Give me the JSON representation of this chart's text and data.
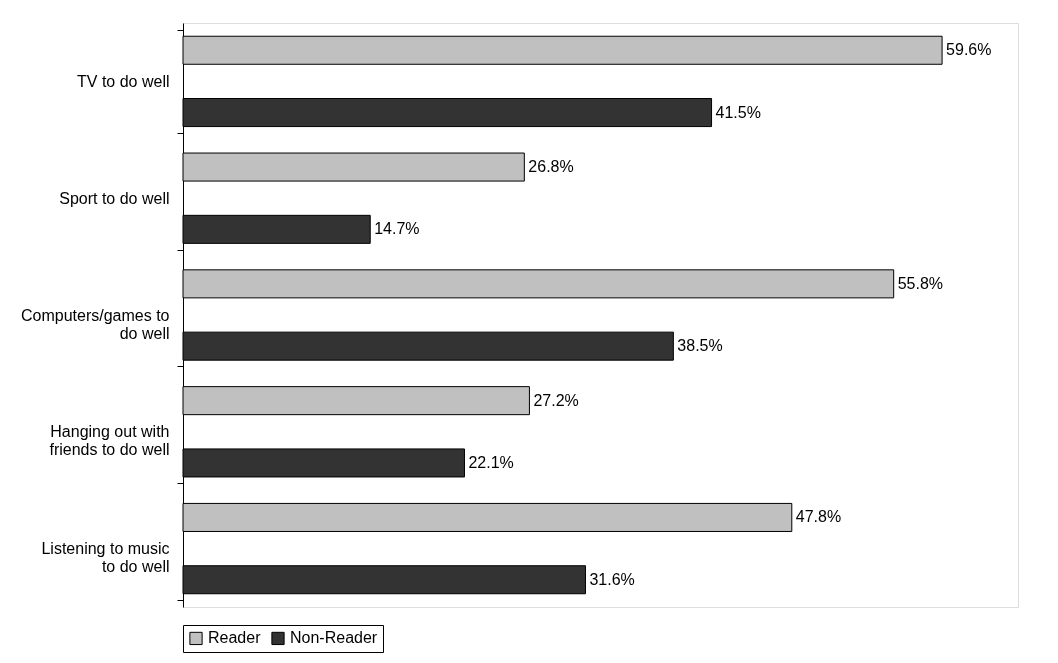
{
  "chart_data": {
    "type": "bar",
    "orientation": "horizontal",
    "categories": [
      "TV to do well",
      "Sport to do well",
      "Computers/games to do well",
      "Hanging out with friends to do well",
      "Listening to music to do well"
    ],
    "series": [
      {
        "name": "Reader",
        "color": "#c0c0c0",
        "values": [
          59.6,
          26.8,
          55.8,
          27.2,
          47.8
        ],
        "value_labels": [
          "59.6%",
          "26.8%",
          "55.8%",
          "27.2%",
          "47.8%"
        ]
      },
      {
        "name": "Non-Reader",
        "color": "#333333",
        "values": [
          41.5,
          14.7,
          38.5,
          22.1,
          31.6
        ],
        "value_labels": [
          "41.5%",
          "14.7%",
          "38.5%",
          "22.1%",
          "31.6%"
        ]
      }
    ],
    "legend": "bottom",
    "grid": false
  }
}
